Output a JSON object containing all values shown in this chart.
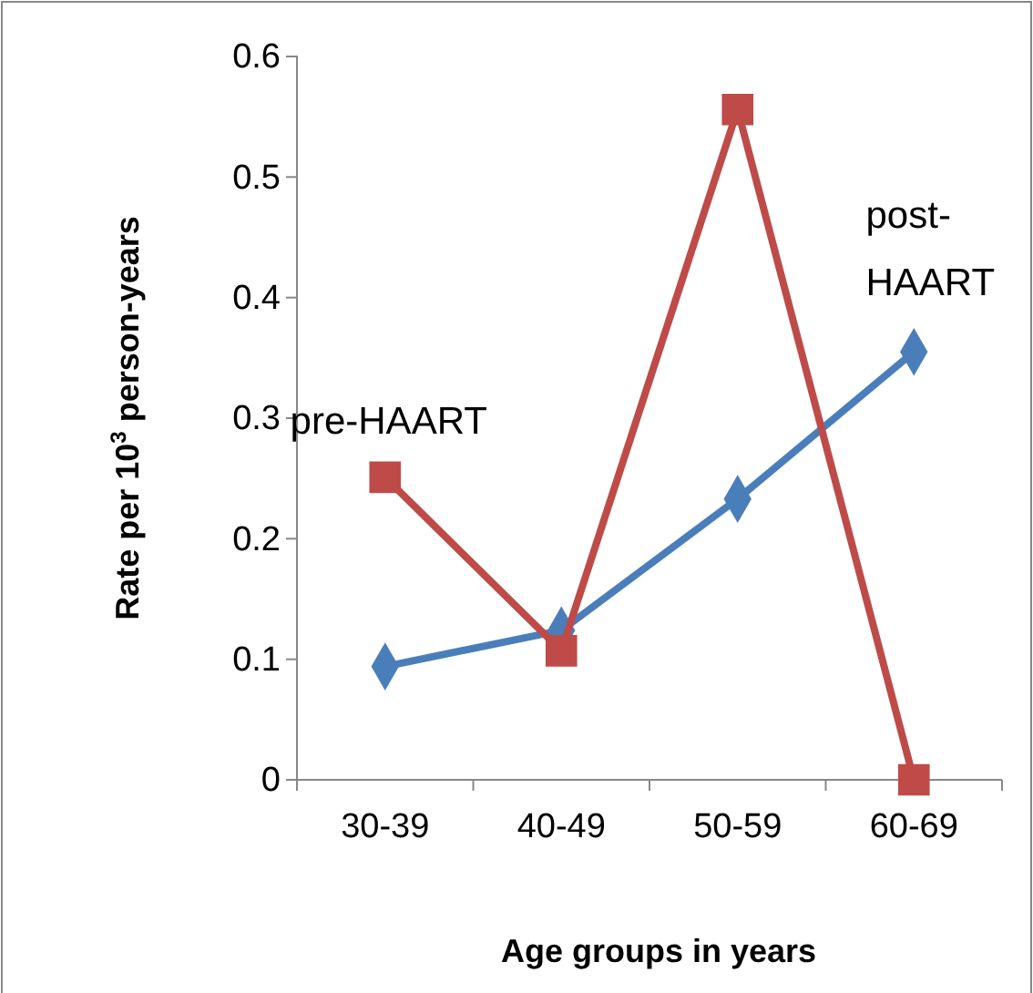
{
  "chart_data": {
    "type": "line",
    "xlabel": "Age groups in years",
    "ylabel": "Rate per 10$^{3}$ person-years",
    "categories": [
      "30-39",
      "40-49",
      "50-59",
      "60-69"
    ],
    "ylim": [
      0,
      0.6
    ],
    "yticks": [
      0,
      0.1,
      0.2,
      0.3,
      0.4,
      0.5,
      0.6
    ],
    "grid": false,
    "series": [
      {
        "name": "post-HAART",
        "color": "#4a7ebb",
        "marker": "diamond",
        "values": [
          0.094,
          0.124,
          0.233,
          0.355
        ]
      },
      {
        "name": "pre-HAART",
        "color": "#be4b48",
        "marker": "square",
        "values": [
          0.251,
          0.107,
          0.556,
          0
        ]
      }
    ]
  }
}
